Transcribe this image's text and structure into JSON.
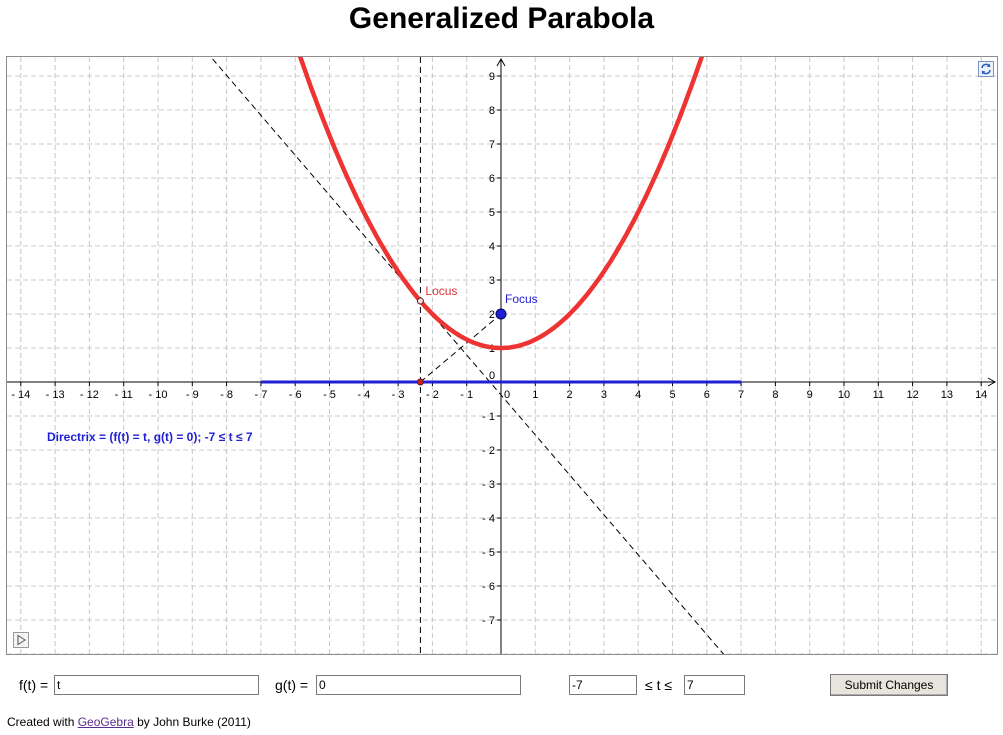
{
  "page_title": "Generalized Parabola",
  "graph": {
    "x_range": [
      -14.6,
      14.6
    ],
    "y_range": [
      -8.0,
      9.5
    ],
    "x_ticks": [
      -14,
      -13,
      -12,
      -11,
      -10,
      -9,
      -8,
      -7,
      -6,
      -5,
      -4,
      -3,
      -2,
      -1,
      1,
      2,
      3,
      4,
      5,
      6,
      7,
      8,
      9,
      10,
      11,
      12,
      13,
      14
    ],
    "y_ticks": [
      -7,
      -6,
      -5,
      -4,
      -3,
      -2,
      -1,
      1,
      2,
      3,
      4,
      5,
      6,
      7,
      8,
      9
    ],
    "origin_x_label": "0",
    "origin_y_label": "0",
    "focus": {
      "label": "Focus",
      "x": 0,
      "y": 2,
      "color": "#1f1fd6"
    },
    "locus": {
      "label": "Locus",
      "t": -2.35,
      "color": "#e03030"
    },
    "directrix": {
      "t_min": -7,
      "t_max": 7,
      "y": 0,
      "color": "#1f1fd6"
    },
    "parabola": {
      "color": "#ee3333",
      "vertex_y": 1,
      "a": 0.25
    },
    "directrix_caption": "Directrix = (f(t) = t, g(t) = 0);  -7 ≤ t ≤ 7",
    "icons": {
      "refresh": "refresh-icon",
      "play": "play-icon"
    }
  },
  "controls": {
    "f_label": "f(t) =",
    "f_value": "t",
    "g_label": "g(t) =",
    "g_value": "0",
    "t_min_value": "-7",
    "t_range_label": "≤ t ≤",
    "t_max_value": "7",
    "submit_label": "Submit Changes"
  },
  "footer": {
    "prefix": "Created with ",
    "link_text": "GeoGebra",
    "suffix": " by John Burke (2011)"
  }
}
